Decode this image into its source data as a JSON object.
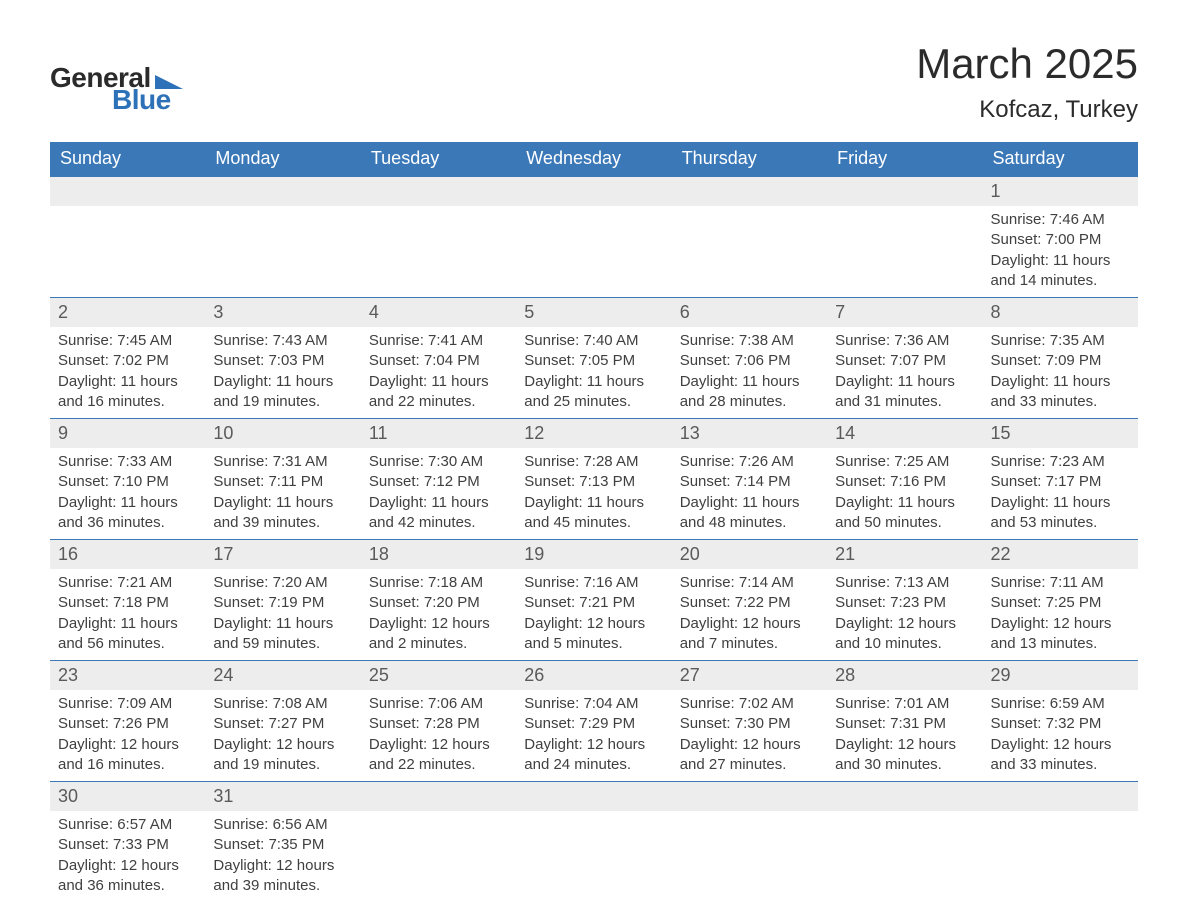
{
  "brand": {
    "word1": "General",
    "word2": "Blue"
  },
  "title": "March 2025",
  "location": "Kofcaz, Turkey",
  "colors": {
    "header_bg": "#3b78b8",
    "header_text": "#ffffff",
    "daynum_bg": "#ededed",
    "body_text": "#404040",
    "rule": "#3b78b8",
    "page_bg": "#ffffff"
  },
  "fonts": {
    "title_size_pt": 32,
    "subtitle_size_pt": 18,
    "header_size_pt": 14,
    "body_size_pt": 11
  },
  "weekdays": [
    "Sunday",
    "Monday",
    "Tuesday",
    "Wednesday",
    "Thursday",
    "Friday",
    "Saturday"
  ],
  "weeks": [
    [
      null,
      null,
      null,
      null,
      null,
      null,
      {
        "n": "1",
        "sunrise": "Sunrise: 7:46 AM",
        "sunset": "Sunset: 7:00 PM",
        "day1": "Daylight: 11 hours",
        "day2": "and 14 minutes."
      }
    ],
    [
      {
        "n": "2",
        "sunrise": "Sunrise: 7:45 AM",
        "sunset": "Sunset: 7:02 PM",
        "day1": "Daylight: 11 hours",
        "day2": "and 16 minutes."
      },
      {
        "n": "3",
        "sunrise": "Sunrise: 7:43 AM",
        "sunset": "Sunset: 7:03 PM",
        "day1": "Daylight: 11 hours",
        "day2": "and 19 minutes."
      },
      {
        "n": "4",
        "sunrise": "Sunrise: 7:41 AM",
        "sunset": "Sunset: 7:04 PM",
        "day1": "Daylight: 11 hours",
        "day2": "and 22 minutes."
      },
      {
        "n": "5",
        "sunrise": "Sunrise: 7:40 AM",
        "sunset": "Sunset: 7:05 PM",
        "day1": "Daylight: 11 hours",
        "day2": "and 25 minutes."
      },
      {
        "n": "6",
        "sunrise": "Sunrise: 7:38 AM",
        "sunset": "Sunset: 7:06 PM",
        "day1": "Daylight: 11 hours",
        "day2": "and 28 minutes."
      },
      {
        "n": "7",
        "sunrise": "Sunrise: 7:36 AM",
        "sunset": "Sunset: 7:07 PM",
        "day1": "Daylight: 11 hours",
        "day2": "and 31 minutes."
      },
      {
        "n": "8",
        "sunrise": "Sunrise: 7:35 AM",
        "sunset": "Sunset: 7:09 PM",
        "day1": "Daylight: 11 hours",
        "day2": "and 33 minutes."
      }
    ],
    [
      {
        "n": "9",
        "sunrise": "Sunrise: 7:33 AM",
        "sunset": "Sunset: 7:10 PM",
        "day1": "Daylight: 11 hours",
        "day2": "and 36 minutes."
      },
      {
        "n": "10",
        "sunrise": "Sunrise: 7:31 AM",
        "sunset": "Sunset: 7:11 PM",
        "day1": "Daylight: 11 hours",
        "day2": "and 39 minutes."
      },
      {
        "n": "11",
        "sunrise": "Sunrise: 7:30 AM",
        "sunset": "Sunset: 7:12 PM",
        "day1": "Daylight: 11 hours",
        "day2": "and 42 minutes."
      },
      {
        "n": "12",
        "sunrise": "Sunrise: 7:28 AM",
        "sunset": "Sunset: 7:13 PM",
        "day1": "Daylight: 11 hours",
        "day2": "and 45 minutes."
      },
      {
        "n": "13",
        "sunrise": "Sunrise: 7:26 AM",
        "sunset": "Sunset: 7:14 PM",
        "day1": "Daylight: 11 hours",
        "day2": "and 48 minutes."
      },
      {
        "n": "14",
        "sunrise": "Sunrise: 7:25 AM",
        "sunset": "Sunset: 7:16 PM",
        "day1": "Daylight: 11 hours",
        "day2": "and 50 minutes."
      },
      {
        "n": "15",
        "sunrise": "Sunrise: 7:23 AM",
        "sunset": "Sunset: 7:17 PM",
        "day1": "Daylight: 11 hours",
        "day2": "and 53 minutes."
      }
    ],
    [
      {
        "n": "16",
        "sunrise": "Sunrise: 7:21 AM",
        "sunset": "Sunset: 7:18 PM",
        "day1": "Daylight: 11 hours",
        "day2": "and 56 minutes."
      },
      {
        "n": "17",
        "sunrise": "Sunrise: 7:20 AM",
        "sunset": "Sunset: 7:19 PM",
        "day1": "Daylight: 11 hours",
        "day2": "and 59 minutes."
      },
      {
        "n": "18",
        "sunrise": "Sunrise: 7:18 AM",
        "sunset": "Sunset: 7:20 PM",
        "day1": "Daylight: 12 hours",
        "day2": "and 2 minutes."
      },
      {
        "n": "19",
        "sunrise": "Sunrise: 7:16 AM",
        "sunset": "Sunset: 7:21 PM",
        "day1": "Daylight: 12 hours",
        "day2": "and 5 minutes."
      },
      {
        "n": "20",
        "sunrise": "Sunrise: 7:14 AM",
        "sunset": "Sunset: 7:22 PM",
        "day1": "Daylight: 12 hours",
        "day2": "and 7 minutes."
      },
      {
        "n": "21",
        "sunrise": "Sunrise: 7:13 AM",
        "sunset": "Sunset: 7:23 PM",
        "day1": "Daylight: 12 hours",
        "day2": "and 10 minutes."
      },
      {
        "n": "22",
        "sunrise": "Sunrise: 7:11 AM",
        "sunset": "Sunset: 7:25 PM",
        "day1": "Daylight: 12 hours",
        "day2": "and 13 minutes."
      }
    ],
    [
      {
        "n": "23",
        "sunrise": "Sunrise: 7:09 AM",
        "sunset": "Sunset: 7:26 PM",
        "day1": "Daylight: 12 hours",
        "day2": "and 16 minutes."
      },
      {
        "n": "24",
        "sunrise": "Sunrise: 7:08 AM",
        "sunset": "Sunset: 7:27 PM",
        "day1": "Daylight: 12 hours",
        "day2": "and 19 minutes."
      },
      {
        "n": "25",
        "sunrise": "Sunrise: 7:06 AM",
        "sunset": "Sunset: 7:28 PM",
        "day1": "Daylight: 12 hours",
        "day2": "and 22 minutes."
      },
      {
        "n": "26",
        "sunrise": "Sunrise: 7:04 AM",
        "sunset": "Sunset: 7:29 PM",
        "day1": "Daylight: 12 hours",
        "day2": "and 24 minutes."
      },
      {
        "n": "27",
        "sunrise": "Sunrise: 7:02 AM",
        "sunset": "Sunset: 7:30 PM",
        "day1": "Daylight: 12 hours",
        "day2": "and 27 minutes."
      },
      {
        "n": "28",
        "sunrise": "Sunrise: 7:01 AM",
        "sunset": "Sunset: 7:31 PM",
        "day1": "Daylight: 12 hours",
        "day2": "and 30 minutes."
      },
      {
        "n": "29",
        "sunrise": "Sunrise: 6:59 AM",
        "sunset": "Sunset: 7:32 PM",
        "day1": "Daylight: 12 hours",
        "day2": "and 33 minutes."
      }
    ],
    [
      {
        "n": "30",
        "sunrise": "Sunrise: 6:57 AM",
        "sunset": "Sunset: 7:33 PM",
        "day1": "Daylight: 12 hours",
        "day2": "and 36 minutes."
      },
      {
        "n": "31",
        "sunrise": "Sunrise: 6:56 AM",
        "sunset": "Sunset: 7:35 PM",
        "day1": "Daylight: 12 hours",
        "day2": "and 39 minutes."
      },
      null,
      null,
      null,
      null,
      null
    ]
  ]
}
